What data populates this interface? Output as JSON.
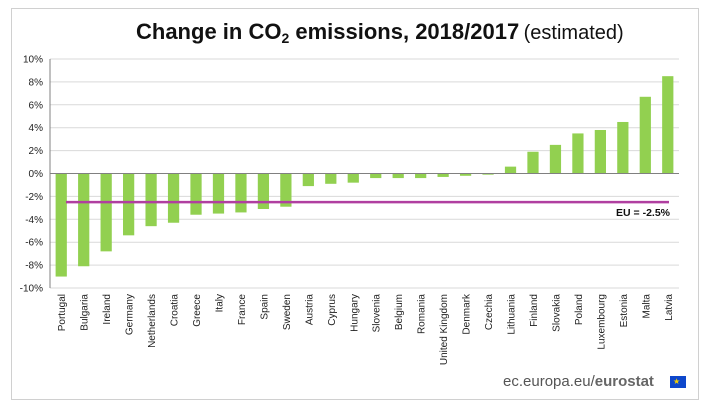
{
  "title_prefix": "Change in CO",
  "title_subscript": "2",
  "title_suffix": " emissions, 2018/2017",
  "title_note": "(estimated)",
  "source_prefix": "ec.europa.eu/",
  "source_brand": "eurostat",
  "colors": {
    "bar": "#92d050",
    "eu_line": "#b03fa0",
    "grid": "#d9d9d9",
    "axis": "#808080"
  },
  "chart_data": {
    "type": "bar",
    "title": "Change in CO2 emissions, 2018/2017 (estimated)",
    "categories": [
      "Portugal",
      "Bulgaria",
      "Ireland",
      "Germany",
      "Netherlands",
      "Croatia",
      "Greece",
      "Italy",
      "France",
      "Spain",
      "Sweden",
      "Austria",
      "Cyprus",
      "Hungary",
      "Slovenia",
      "Belgium",
      "Romania",
      "United Kingdom",
      "Denmark",
      "Czechia",
      "Lithuania",
      "Finland",
      "Slovakia",
      "Poland",
      "Luxembourg",
      "Estonia",
      "Malta",
      "Latvia"
    ],
    "values": [
      -9.0,
      -8.1,
      -6.8,
      -5.4,
      -4.6,
      -4.3,
      -3.6,
      -3.5,
      -3.4,
      -3.1,
      -2.9,
      -1.1,
      -0.9,
      -0.8,
      -0.4,
      -0.4,
      -0.4,
      -0.3,
      -0.2,
      -0.1,
      0.6,
      1.9,
      2.5,
      3.5,
      3.8,
      4.5,
      6.7,
      8.5
    ],
    "ylim": [
      -10,
      10
    ],
    "yticks": [
      -10,
      -8,
      -6,
      -4,
      -2,
      0,
      2,
      4,
      6,
      8,
      10
    ],
    "ytick_labels": [
      "-10%",
      "-8%",
      "-6%",
      "-4%",
      "-2%",
      "0%",
      "2%",
      "4%",
      "6%",
      "8%",
      "10%"
    ],
    "reference_line": {
      "value": -2.5,
      "label": "EU = -2.5%"
    },
    "xlabel": "",
    "ylabel": "",
    "grid": true
  }
}
